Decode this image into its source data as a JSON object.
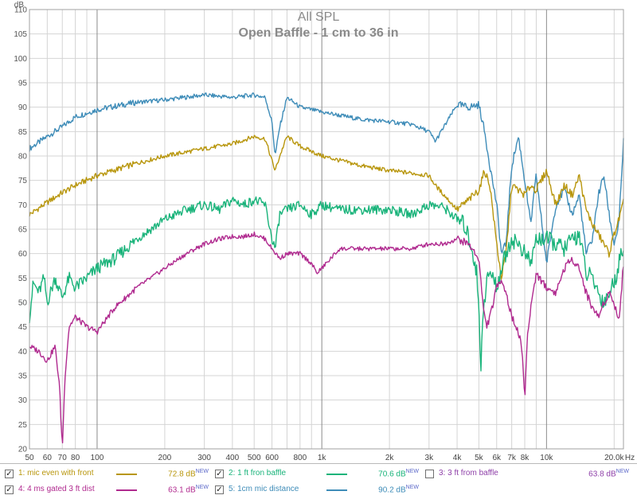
{
  "chart_data": {
    "type": "line",
    "title": "All SPL",
    "subtitle": "Open Baffle - 1 cm to 36 in",
    "ylabel": "dB",
    "xlabel": "Hz",
    "x_scale": "log",
    "xlim": [
      50,
      22000
    ],
    "ylim": [
      20,
      110
    ],
    "grid": true,
    "y_ticks": [
      "20",
      "25",
      "30",
      "35",
      "40",
      "45",
      "50",
      "55",
      "60",
      "65",
      "70",
      "75",
      "80",
      "85",
      "90",
      "95",
      "100",
      "105",
      "110"
    ],
    "x_ticks": [
      {
        "v": 50,
        "label": "50"
      },
      {
        "v": 60,
        "label": "60"
      },
      {
        "v": 70,
        "label": "70"
      },
      {
        "v": 80,
        "label": "80"
      },
      {
        "v": 100,
        "label": "100"
      },
      {
        "v": 200,
        "label": "200"
      },
      {
        "v": 300,
        "label": "300"
      },
      {
        "v": 400,
        "label": "400"
      },
      {
        "v": 500,
        "label": "500"
      },
      {
        "v": 600,
        "label": "600"
      },
      {
        "v": 800,
        "label": "800"
      },
      {
        "v": 1000,
        "label": "1k"
      },
      {
        "v": 2000,
        "label": "2k"
      },
      {
        "v": 3000,
        "label": "3k"
      },
      {
        "v": 4000,
        "label": "4k"
      },
      {
        "v": 5000,
        "label": "5k"
      },
      {
        "v": 6000,
        "label": "6k"
      },
      {
        "v": 7000,
        "label": "7k"
      },
      {
        "v": 8000,
        "label": "8k"
      },
      {
        "v": 10000,
        "label": "10k"
      },
      {
        "v": 20000,
        "label": "20.0k"
      },
      {
        "v": 22000,
        "label": "Hz"
      }
    ],
    "series": [
      {
        "name": "5: 1cm mic distance",
        "color": "#3e8cb8",
        "x": [
          50,
          60,
          70,
          80,
          100,
          150,
          200,
          300,
          400,
          500,
          560,
          600,
          620,
          650,
          700,
          800,
          1000,
          1500,
          2000,
          2500,
          3000,
          3200,
          3500,
          4000,
          4500,
          5000,
          5300,
          5600,
          6000,
          6300,
          6600,
          7000,
          7500,
          8000,
          8500,
          9000,
          10000,
          11000,
          12000,
          13000,
          14000,
          15000,
          16000,
          17000,
          18000,
          19000,
          20000,
          21000,
          22000
        ],
        "y": [
          81.5,
          84,
          86,
          88,
          89.5,
          91,
          91.5,
          92.5,
          92,
          92.5,
          92,
          87,
          80,
          86,
          92,
          90,
          89,
          87.5,
          87,
          86.5,
          85,
          83,
          86,
          90.5,
          90,
          90.5,
          85,
          78,
          70,
          60,
          62,
          78,
          84,
          75,
          66,
          76,
          58,
          70,
          73,
          68,
          72,
          60,
          63,
          72,
          76,
          68,
          62,
          66,
          83
        ]
      },
      {
        "name": "1: mic even with front",
        "color": "#b8960c",
        "x": [
          50,
          60,
          70,
          80,
          100,
          150,
          200,
          300,
          400,
          500,
          560,
          600,
          620,
          650,
          700,
          800,
          1000,
          1500,
          2000,
          2500,
          3000,
          3200,
          3500,
          4000,
          4500,
          5000,
          5300,
          5600,
          6000,
          6300,
          6600,
          7000,
          7500,
          8000,
          8500,
          9000,
          10000,
          11000,
          12000,
          13000,
          14000,
          15000,
          16000,
          17000,
          18000,
          19000,
          20000,
          21000,
          22000
        ],
        "y": [
          68,
          70.5,
          72.5,
          74,
          76,
          78.5,
          80,
          81.5,
          82.5,
          84,
          83.5,
          79,
          77,
          80,
          84,
          82,
          80,
          78,
          77,
          76.5,
          76,
          74,
          72,
          69,
          71,
          73,
          77,
          74,
          62,
          55,
          60,
          74,
          73,
          72,
          74,
          73,
          77,
          70,
          74,
          72,
          76,
          69,
          66,
          64,
          62,
          60,
          64,
          67,
          70.5
        ]
      },
      {
        "name": "2: 1 ft fron baffle",
        "color": "#19b37a",
        "x": [
          50,
          52,
          55,
          58,
          60,
          65,
          70,
          75,
          80,
          90,
          100,
          120,
          150,
          200,
          250,
          300,
          350,
          400,
          450,
          500,
          560,
          600,
          620,
          650,
          700,
          800,
          900,
          1000,
          1200,
          1500,
          2000,
          2500,
          3000,
          3500,
          4000,
          4300,
          4600,
          4900,
          5000,
          5100,
          5200,
          5500,
          5800,
          6000,
          6300,
          6600,
          7000,
          7500,
          8000,
          8500,
          9000,
          10000,
          11000,
          12000,
          13000,
          14000,
          15000,
          16000,
          17000,
          18000,
          19000,
          20000,
          21000,
          22000
        ],
        "y": [
          47,
          54,
          52,
          55,
          50,
          55,
          51,
          55,
          53,
          55,
          57,
          59,
          63,
          67,
          69,
          70,
          69,
          71,
          70,
          71,
          70,
          63,
          61,
          68,
          69,
          70,
          68,
          70,
          69,
          69,
          69,
          68,
          70,
          69.5,
          67,
          66,
          62,
          56,
          48,
          36,
          48,
          56,
          55,
          53,
          57,
          60,
          63,
          62,
          60,
          58,
          63,
          63,
          62,
          61,
          63,
          64,
          56,
          55,
          52,
          50,
          52,
          54,
          58,
          62
        ]
      },
      {
        "name": "4: 4 ms gated 3 ft dist",
        "color": "#b02a8f",
        "x": [
          50,
          55,
          60,
          65,
          68,
          70,
          72,
          75,
          80,
          90,
          100,
          120,
          150,
          200,
          250,
          300,
          350,
          400,
          450,
          500,
          560,
          600,
          650,
          700,
          800,
          900,
          950,
          1000,
          1200,
          1500,
          2000,
          2500,
          3000,
          3500,
          4000,
          4500,
          5000,
          5200,
          5400,
          5600,
          6000,
          6300,
          6600,
          7000,
          7500,
          7800,
          8000,
          8200,
          8500,
          9000,
          10000,
          11000,
          12000,
          13000,
          14000,
          15000,
          16000,
          17000,
          18000,
          19000,
          20000,
          21000,
          22000
        ],
        "y": [
          41,
          40,
          38,
          41,
          33,
          20,
          35,
          45,
          47,
          45,
          44,
          49,
          53,
          57,
          60,
          62,
          63,
          63.5,
          63.5,
          64,
          63,
          61,
          59,
          60,
          60,
          58,
          56,
          57,
          61,
          61,
          61,
          61,
          62,
          62,
          63,
          62,
          59,
          50,
          45,
          47,
          53,
          55,
          52,
          47,
          44,
          40,
          30,
          42,
          49,
          56,
          53,
          52,
          57,
          59,
          57,
          52,
          49,
          47,
          50,
          52,
          50,
          46,
          58
        ]
      }
    ]
  },
  "legend": {
    "items": [
      {
        "checked": "✓",
        "label": "1: mic even with front",
        "value": "72.8 dB",
        "new": "NEW",
        "color": "#b8960c",
        "label_color": "#b8960c"
      },
      {
        "checked": "✓",
        "label": "2: 1 ft fron baffle",
        "value": "70.6 dB",
        "new": "NEW",
        "color": "#19b37a",
        "label_color": "#19b37a"
      },
      {
        "checked": "",
        "label": "3: 3 ft from baffle",
        "value": "63.8 dB",
        "new": "NEW",
        "color": "#8e3fa8",
        "label_color": "#8e3fa8"
      },
      {
        "checked": "✓",
        "label": "4: 4 ms gated 3 ft dist",
        "value": "63.1 dB",
        "new": "NEW",
        "color": "#b02a8f",
        "label_color": "#b02a8f"
      },
      {
        "checked": "✓",
        "label": "5: 1cm mic distance",
        "value": "90.2 dB",
        "new": "NEW",
        "color": "#3e8cb8",
        "label_color": "#3e8cb8"
      }
    ]
  }
}
